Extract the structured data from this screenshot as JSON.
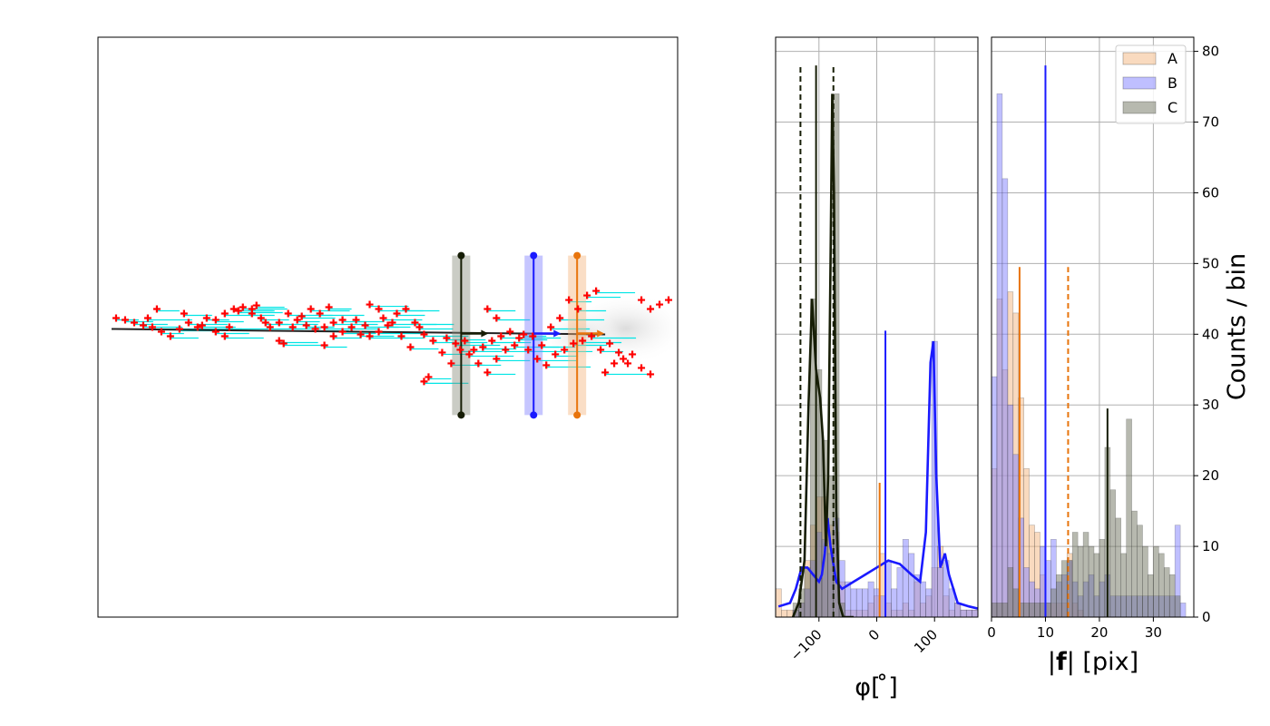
{
  "colors": {
    "A": "#e8740c",
    "B": "#1a1aff",
    "C": "#161d05",
    "dots": "#ff0000",
    "flow": "#00e5e5"
  },
  "chart_data": [
    {
      "type": "scatter",
      "name": "image-panel",
      "xlim": [
        0,
        640
      ],
      "ylim": [
        640,
        0
      ],
      "points": [
        [
          20,
          310
        ],
        [
          30,
          312
        ],
        [
          40,
          315
        ],
        [
          50,
          318
        ],
        [
          60,
          320
        ],
        [
          70,
          325
        ],
        [
          80,
          330
        ],
        [
          90,
          322
        ],
        [
          100,
          315
        ],
        [
          110,
          320
        ],
        [
          120,
          310
        ],
        [
          130,
          312
        ],
        [
          140,
          305
        ],
        [
          150,
          300
        ],
        [
          160,
          298
        ],
        [
          170,
          305
        ],
        [
          180,
          310
        ],
        [
          190,
          320
        ],
        [
          200,
          315
        ],
        [
          210,
          305
        ],
        [
          220,
          312
        ],
        [
          230,
          318
        ],
        [
          240,
          322
        ],
        [
          250,
          320
        ],
        [
          260,
          315
        ],
        [
          270,
          312
        ],
        [
          280,
          320
        ],
        [
          290,
          328
        ],
        [
          300,
          330
        ],
        [
          310,
          325
        ],
        [
          320,
          318
        ],
        [
          330,
          305
        ],
        [
          340,
          300
        ],
        [
          350,
          315
        ],
        [
          360,
          328
        ],
        [
          370,
          335
        ],
        [
          380,
          348
        ],
        [
          390,
          360
        ],
        [
          400,
          345
        ],
        [
          410,
          350
        ],
        [
          420,
          360
        ],
        [
          430,
          370
        ],
        [
          440,
          355
        ],
        [
          450,
          345
        ],
        [
          460,
          340
        ],
        [
          470,
          328
        ],
        [
          480,
          330
        ],
        [
          490,
          340
        ],
        [
          500,
          320
        ],
        [
          510,
          310
        ],
        [
          520,
          290
        ],
        [
          530,
          300
        ],
        [
          540,
          285
        ],
        [
          550,
          280
        ],
        [
          560,
          370
        ],
        [
          570,
          360
        ],
        [
          580,
          355
        ],
        [
          590,
          350
        ],
        [
          600,
          365
        ],
        [
          610,
          372
        ],
        [
          600,
          290
        ],
        [
          610,
          300
        ],
        [
          620,
          295
        ],
        [
          630,
          290
        ],
        [
          360,
          380
        ],
        [
          365,
          375
        ],
        [
          430,
          300
        ],
        [
          440,
          310
        ],
        [
          300,
          295
        ],
        [
          310,
          300
        ],
        [
          250,
          340
        ],
        [
          260,
          330
        ],
        [
          270,
          325
        ],
        [
          200,
          335
        ],
        [
          205,
          338
        ],
        [
          170,
          300
        ],
        [
          175,
          296
        ],
        [
          130,
          325
        ],
        [
          140,
          330
        ],
        [
          55,
          310
        ],
        [
          65,
          300
        ],
        [
          95,
          305
        ],
        [
          115,
          318
        ],
        [
          145,
          320
        ],
        [
          155,
          302
        ],
        [
          185,
          315
        ],
        [
          215,
          320
        ],
        [
          225,
          308
        ],
        [
          235,
          300
        ],
        [
          245,
          305
        ],
        [
          255,
          298
        ],
        [
          285,
          312
        ],
        [
          295,
          318
        ],
        [
          315,
          310
        ],
        [
          325,
          315
        ],
        [
          335,
          330
        ],
        [
          345,
          342
        ],
        [
          355,
          320
        ],
        [
          385,
          332
        ],
        [
          395,
          338
        ],
        [
          405,
          335
        ],
        [
          415,
          345
        ],
        [
          425,
          342
        ],
        [
          435,
          335
        ],
        [
          445,
          330
        ],
        [
          455,
          325
        ],
        [
          465,
          332
        ],
        [
          475,
          345
        ],
        [
          485,
          355
        ],
        [
          495,
          362
        ],
        [
          505,
          350
        ],
        [
          515,
          345
        ],
        [
          525,
          338
        ],
        [
          535,
          335
        ],
        [
          545,
          330
        ],
        [
          555,
          345
        ],
        [
          565,
          338
        ],
        [
          575,
          348
        ],
        [
          585,
          360
        ]
      ],
      "markers": [
        {
          "series": "C",
          "x": 401,
          "y_top": 241,
          "y_bottom": 417
        },
        {
          "series": "B",
          "x": 481,
          "y_top": 241,
          "y_bottom": 417
        },
        {
          "series": "A",
          "x": 529,
          "y_top": 241,
          "y_bottom": 417
        }
      ]
    },
    {
      "type": "bar",
      "name": "phi-histogram",
      "xlabel": "φ[ ̊]",
      "xlim": [
        -175,
        175
      ],
      "ylim": [
        0,
        82
      ],
      "xticks": [
        {
          "value": -100,
          "label": "−100"
        },
        {
          "value": 0,
          "label": "0"
        },
        {
          "value": 100,
          "label": "100"
        }
      ],
      "bin_width": 10,
      "bin_starts": [
        -175,
        -165,
        -155,
        -145,
        -135,
        -125,
        -115,
        -105,
        -95,
        -85,
        -75,
        -65,
        -55,
        -45,
        -35,
        -25,
        -15,
        -5,
        5,
        15,
        25,
        35,
        45,
        55,
        65,
        75,
        85,
        95,
        105,
        115,
        125,
        135,
        145,
        155,
        165
      ],
      "series": [
        {
          "name": "A",
          "values": [
            4,
            1,
            1,
            1,
            2,
            8,
            13,
            17,
            17,
            13,
            12,
            5,
            1,
            1,
            1,
            1,
            2,
            3,
            9,
            2,
            1,
            1,
            2,
            1,
            5,
            2,
            3,
            7,
            10,
            3,
            1,
            2,
            1,
            1,
            1
          ]
        },
        {
          "name": "B",
          "values": [
            0,
            0,
            0,
            1,
            2,
            4,
            8,
            12,
            11,
            9,
            14,
            8,
            5,
            4,
            4,
            4,
            5,
            4,
            3,
            8,
            4,
            7,
            11,
            9,
            6,
            5,
            4,
            39,
            7,
            8,
            4,
            2,
            1,
            1,
            1
          ]
        },
        {
          "name": "C",
          "values": [
            0,
            0,
            0,
            2,
            4,
            7,
            45,
            35,
            25,
            20,
            74,
            2,
            0,
            0,
            0,
            0,
            0,
            0,
            0,
            0,
            0,
            0,
            0,
            0,
            0,
            0,
            0,
            0,
            0,
            0,
            0,
            0,
            0,
            0,
            0
          ]
        }
      ],
      "kde": [
        {
          "name": "B",
          "points": [
            [
              -170,
              1.5
            ],
            [
              -150,
              2
            ],
            [
              -140,
              4
            ],
            [
              -130,
              7
            ],
            [
              -120,
              7
            ],
            [
              -110,
              6
            ],
            [
              -100,
              5
            ],
            [
              -95,
              6
            ],
            [
              -90,
              9
            ],
            [
              -85,
              14
            ],
            [
              -80,
              10
            ],
            [
              -70,
              5
            ],
            [
              -60,
              4
            ],
            [
              -40,
              5
            ],
            [
              -20,
              6
            ],
            [
              0,
              7
            ],
            [
              20,
              8
            ],
            [
              40,
              7.5
            ],
            [
              60,
              6
            ],
            [
              75,
              5
            ],
            [
              85,
              12
            ],
            [
              93,
              36
            ],
            [
              98,
              39
            ],
            [
              103,
              20
            ],
            [
              110,
              7
            ],
            [
              118,
              9
            ],
            [
              125,
              6
            ],
            [
              140,
              2
            ],
            [
              160,
              1.5
            ],
            [
              175,
              1.2
            ]
          ]
        },
        {
          "name": "C",
          "points": [
            [
              -145,
              0
            ],
            [
              -135,
              2
            ],
            [
              -125,
              8
            ],
            [
              -118,
              30
            ],
            [
              -112,
              45
            ],
            [
              -105,
              35
            ],
            [
              -98,
              31
            ],
            [
              -93,
              25
            ],
            [
              -88,
              10
            ],
            [
              -84,
              20
            ],
            [
              -80,
              50
            ],
            [
              -77,
              74
            ],
            [
              -74,
              60
            ],
            [
              -70,
              15
            ],
            [
              -65,
              2
            ],
            [
              -58,
              0
            ],
            [
              -40,
              0
            ]
          ]
        }
      ],
      "vlines": [
        {
          "series": "A",
          "x": 5,
          "height": 19,
          "style": "solid"
        },
        {
          "series": "B",
          "x": 15,
          "height": 40.5,
          "style": "solid"
        },
        {
          "series": "C",
          "x": -105,
          "height": 78,
          "style": "solid"
        },
        {
          "series": "C",
          "x": -132,
          "height": 78,
          "style": "dashed"
        },
        {
          "series": "C",
          "x": -75,
          "height": 78,
          "style": "dashed"
        }
      ]
    },
    {
      "type": "bar",
      "name": "magnitude-histogram",
      "xlabel": "|f| [pix]",
      "xlabel_parts": [
        "|",
        "f",
        "| [pix]"
      ],
      "ylabel": "Counts / bin",
      "xlim": [
        0,
        37.5
      ],
      "ylim": [
        0,
        82
      ],
      "xticks": [
        0,
        10,
        20,
        30
      ],
      "yticks": [
        0,
        10,
        20,
        30,
        40,
        50,
        60,
        70,
        80
      ],
      "bin_width": 1,
      "bin_starts": [
        0,
        1,
        2,
        3,
        4,
        5,
        6,
        7,
        8,
        9,
        10,
        11,
        12,
        13,
        14,
        15,
        16,
        17,
        18,
        19,
        20,
        21,
        22,
        23,
        24,
        25,
        26,
        27,
        28,
        29,
        30,
        31,
        32,
        33,
        34,
        35
      ],
      "series": [
        {
          "name": "A",
          "values": [
            21,
            45,
            35,
            46,
            43,
            31,
            21,
            13,
            12,
            6,
            2,
            2,
            2,
            2,
            9,
            2,
            1,
            0,
            0,
            0,
            0,
            0,
            0,
            0,
            0,
            0,
            0,
            0,
            0,
            0,
            0,
            0,
            0,
            0,
            0,
            0
          ]
        },
        {
          "name": "B",
          "values": [
            34,
            74,
            62,
            30,
            23,
            14,
            7,
            5,
            4,
            10,
            8,
            11,
            5,
            6,
            8,
            5,
            3,
            5,
            6,
            3,
            5,
            6,
            3,
            3,
            3,
            3,
            3,
            3,
            3,
            3,
            3,
            3,
            3,
            3,
            13,
            2
          ]
        },
        {
          "name": "C",
          "values": [
            2,
            2,
            2,
            7,
            4,
            2,
            2,
            2,
            2,
            2,
            2,
            4,
            6,
            8,
            8,
            12,
            10,
            12,
            10,
            9,
            11,
            24,
            18,
            14,
            9,
            28,
            15,
            13,
            10,
            6,
            10,
            9,
            7,
            6,
            3,
            0
          ]
        }
      ],
      "vlines": [
        {
          "series": "A",
          "x": 5.2,
          "height": 49.5,
          "style": "solid"
        },
        {
          "series": "A",
          "x": 14.2,
          "height": 49.5,
          "style": "dashed"
        },
        {
          "series": "B",
          "x": 10.0,
          "height": 78,
          "style": "solid"
        },
        {
          "series": "C",
          "x": 21.5,
          "height": 29.5,
          "style": "solid"
        }
      ],
      "legend": {
        "position": "top-right",
        "entries": [
          "A",
          "B",
          "C"
        ]
      }
    }
  ]
}
